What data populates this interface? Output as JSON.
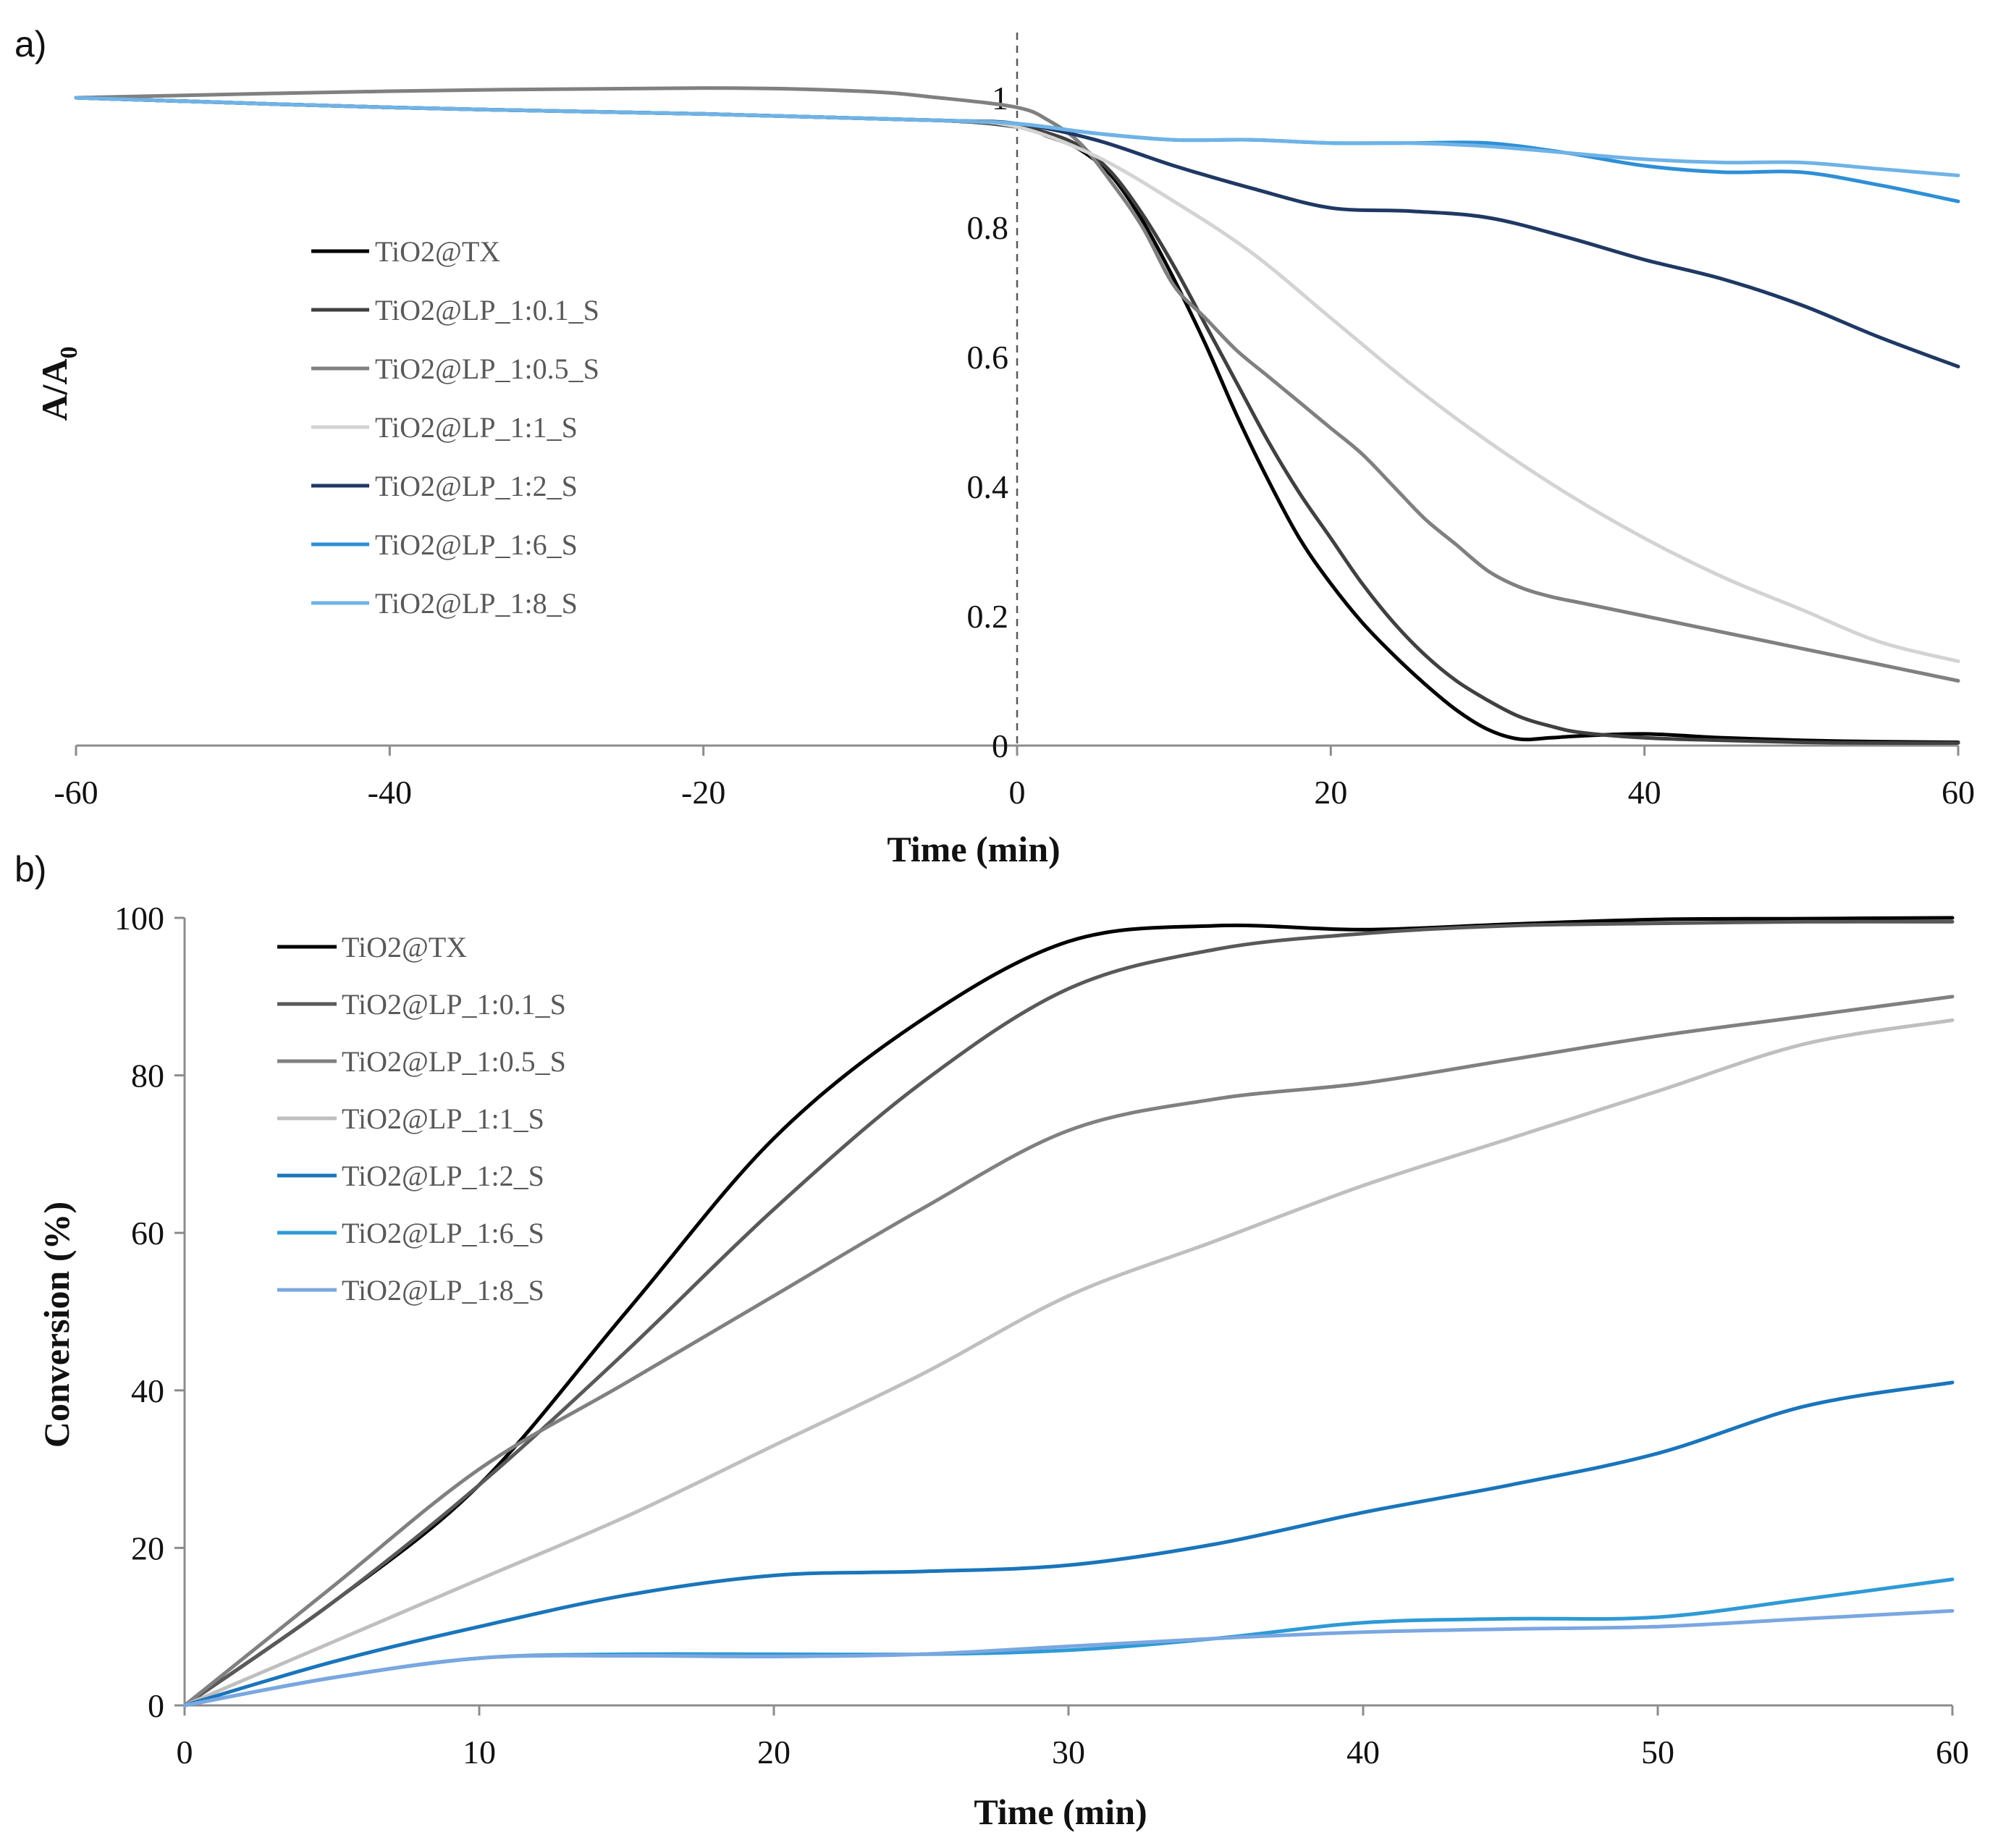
{
  "chart_data": [
    {
      "panel_label": "a)",
      "type": "line",
      "xlabel": "Time (min)",
      "ylabel_main": "A/A",
      "ylabel_sub": "0",
      "xlim": [
        -60,
        60
      ],
      "ylim": [
        0,
        1
      ],
      "x_ticks": [
        "-60",
        "-40",
        "-20",
        "0",
        "20",
        "40",
        "60"
      ],
      "y_ticks": [
        "0",
        "0.2",
        "0.4",
        "0.6",
        "0.8",
        "1"
      ],
      "vertical_dashed_line_x": 0,
      "legend_position": "left",
      "series": [
        {
          "name": "TiO2@TX",
          "color": "#000000",
          "x": [
            -60,
            -40,
            -20,
            -5,
            0,
            2,
            4,
            6,
            8,
            10,
            12,
            14,
            16,
            18,
            20,
            22,
            24,
            26,
            28,
            30,
            32,
            34,
            36,
            40,
            45,
            50,
            55,
            60
          ],
          "y": [
            1.0,
            0.985,
            0.975,
            0.965,
            0.955,
            0.94,
            0.92,
            0.88,
            0.81,
            0.72,
            0.62,
            0.51,
            0.41,
            0.32,
            0.25,
            0.19,
            0.14,
            0.095,
            0.055,
            0.025,
            0.01,
            0.012,
            0.015,
            0.018,
            0.012,
            0.008,
            0.006,
            0.005
          ]
        },
        {
          "name": "TiO2@LP_1:0.1_S",
          "color": "#404040",
          "x": [
            -60,
            -40,
            -20,
            -5,
            0,
            2,
            4,
            6,
            8,
            10,
            12,
            14,
            16,
            18,
            20,
            22,
            24,
            26,
            28,
            30,
            32,
            34,
            36,
            40,
            45,
            50,
            55,
            60
          ],
          "y": [
            1.0,
            0.985,
            0.975,
            0.965,
            0.955,
            0.945,
            0.925,
            0.885,
            0.82,
            0.74,
            0.65,
            0.56,
            0.47,
            0.39,
            0.32,
            0.25,
            0.19,
            0.14,
            0.1,
            0.07,
            0.045,
            0.03,
            0.02,
            0.012,
            0.008,
            0.005,
            0.004,
            0.004
          ]
        },
        {
          "name": "TiO2@LP_1:0.5_S",
          "color": "#808080",
          "x": [
            -60,
            -40,
            -20,
            -10,
            -5,
            0,
            2,
            4,
            6,
            8,
            10,
            12,
            14,
            16,
            18,
            20,
            22,
            24,
            26,
            28,
            30,
            32,
            34,
            36,
            40,
            45,
            50,
            55,
            60
          ],
          "y": [
            1.0,
            1.01,
            1.015,
            1.01,
            1.0,
            0.985,
            0.965,
            0.93,
            0.87,
            0.8,
            0.71,
            0.66,
            0.61,
            0.57,
            0.53,
            0.49,
            0.45,
            0.4,
            0.35,
            0.31,
            0.27,
            0.245,
            0.23,
            0.22,
            0.2,
            0.175,
            0.15,
            0.125,
            0.1
          ]
        },
        {
          "name": "TiO2@LP_1:1_S",
          "color": "#d3d3d3",
          "x": [
            -60,
            -40,
            -20,
            -5,
            0,
            5,
            10,
            15,
            20,
            25,
            30,
            35,
            40,
            45,
            50,
            55,
            60
          ],
          "y": [
            1.0,
            0.985,
            0.975,
            0.965,
            0.955,
            0.91,
            0.84,
            0.76,
            0.66,
            0.56,
            0.47,
            0.39,
            0.32,
            0.26,
            0.21,
            0.16,
            0.13
          ]
        },
        {
          "name": "TiO2@LP_1:2_S",
          "color": "#1f3864",
          "x": [
            -60,
            -40,
            -20,
            -5,
            0,
            5,
            10,
            15,
            20,
            25,
            30,
            35,
            40,
            45,
            50,
            55,
            60
          ],
          "y": [
            1.0,
            0.985,
            0.975,
            0.965,
            0.96,
            0.935,
            0.895,
            0.86,
            0.83,
            0.825,
            0.815,
            0.785,
            0.75,
            0.72,
            0.68,
            0.63,
            0.585
          ]
        },
        {
          "name": "TiO2@LP_1:6_S",
          "color": "#2e8fd6",
          "x": [
            -60,
            -40,
            -20,
            -5,
            0,
            5,
            10,
            15,
            20,
            25,
            30,
            35,
            40,
            45,
            50,
            55,
            60
          ],
          "y": [
            1.0,
            0.985,
            0.975,
            0.965,
            0.96,
            0.945,
            0.935,
            0.935,
            0.93,
            0.93,
            0.93,
            0.915,
            0.895,
            0.885,
            0.885,
            0.865,
            0.84
          ]
        },
        {
          "name": "TiO2@LP_1:8_S",
          "color": "#6fb3e6",
          "x": [
            -60,
            -40,
            -20,
            -5,
            0,
            5,
            10,
            15,
            20,
            25,
            30,
            35,
            40,
            45,
            50,
            55,
            60
          ],
          "y": [
            1.0,
            0.985,
            0.975,
            0.965,
            0.96,
            0.945,
            0.935,
            0.935,
            0.93,
            0.93,
            0.925,
            0.915,
            0.905,
            0.9,
            0.9,
            0.89,
            0.88
          ]
        }
      ]
    },
    {
      "panel_label": "b)",
      "type": "line",
      "xlabel": "Time (min)",
      "ylabel": "Conversion (%)",
      "xlim": [
        0,
        60
      ],
      "ylim": [
        0,
        100
      ],
      "x_ticks": [
        "0",
        "10",
        "20",
        "30",
        "40",
        "50",
        "60"
      ],
      "y_ticks": [
        "0",
        "20",
        "40",
        "60",
        "80",
        "100"
      ],
      "legend_position": "top-left",
      "series": [
        {
          "name": "TiO2@TX",
          "color": "#000000",
          "x": [
            0,
            5,
            10,
            15,
            20,
            25,
            30,
            35,
            40,
            45,
            50,
            55,
            60
          ],
          "y": [
            0,
            13,
            28,
            50,
            72,
            87,
            97,
            99,
            98.5,
            99.2,
            99.8,
            99.9,
            100
          ]
        },
        {
          "name": "TiO2@LP_1:0.1_S",
          "color": "#595959",
          "x": [
            0,
            5,
            10,
            15,
            20,
            25,
            30,
            35,
            40,
            45,
            50,
            55,
            60
          ],
          "y": [
            0,
            13,
            28,
            45,
            63,
            79,
            91,
            96,
            98,
            99,
            99.3,
            99.5,
            99.5
          ]
        },
        {
          "name": "TiO2@LP_1:0.5_S",
          "color": "#808080",
          "x": [
            0,
            5,
            10,
            15,
            20,
            25,
            30,
            35,
            40,
            45,
            50,
            55,
            60
          ],
          "y": [
            0,
            15,
            30,
            41,
            52,
            63,
            73,
            77,
            79,
            82,
            85,
            87.5,
            90
          ]
        },
        {
          "name": "TiO2@LP_1:1_S",
          "color": "#bfbfbf",
          "x": [
            0,
            5,
            10,
            15,
            20,
            25,
            30,
            35,
            40,
            45,
            50,
            55,
            60
          ],
          "y": [
            0,
            8,
            16,
            24,
            33,
            42,
            52,
            59,
            66,
            72,
            78,
            84,
            87
          ]
        },
        {
          "name": "TiO2@LP_1:2_S",
          "color": "#1a75bb",
          "x": [
            0,
            5,
            10,
            15,
            20,
            25,
            30,
            35,
            40,
            45,
            50,
            55,
            60
          ],
          "y": [
            0,
            5.5,
            10,
            14,
            16.5,
            17,
            17.8,
            20.5,
            24.5,
            28,
            32,
            38,
            41
          ]
        },
        {
          "name": "TiO2@LP_1:6_S",
          "color": "#2e9ad6",
          "x": [
            0,
            5,
            10,
            15,
            20,
            25,
            30,
            35,
            40,
            45,
            50,
            55,
            60
          ],
          "y": [
            0,
            3.5,
            6,
            6.5,
            6.5,
            6.5,
            7,
            8.5,
            10.5,
            11,
            11.2,
            13.5,
            16
          ]
        },
        {
          "name": "TiO2@LP_1:8_S",
          "color": "#7aa7e0",
          "x": [
            0,
            5,
            10,
            15,
            20,
            25,
            30,
            35,
            40,
            45,
            50,
            55,
            60
          ],
          "y": [
            0,
            3.5,
            6,
            6.3,
            6.2,
            6.5,
            7.5,
            8.5,
            9.3,
            9.7,
            10,
            11,
            12
          ]
        }
      ]
    }
  ]
}
